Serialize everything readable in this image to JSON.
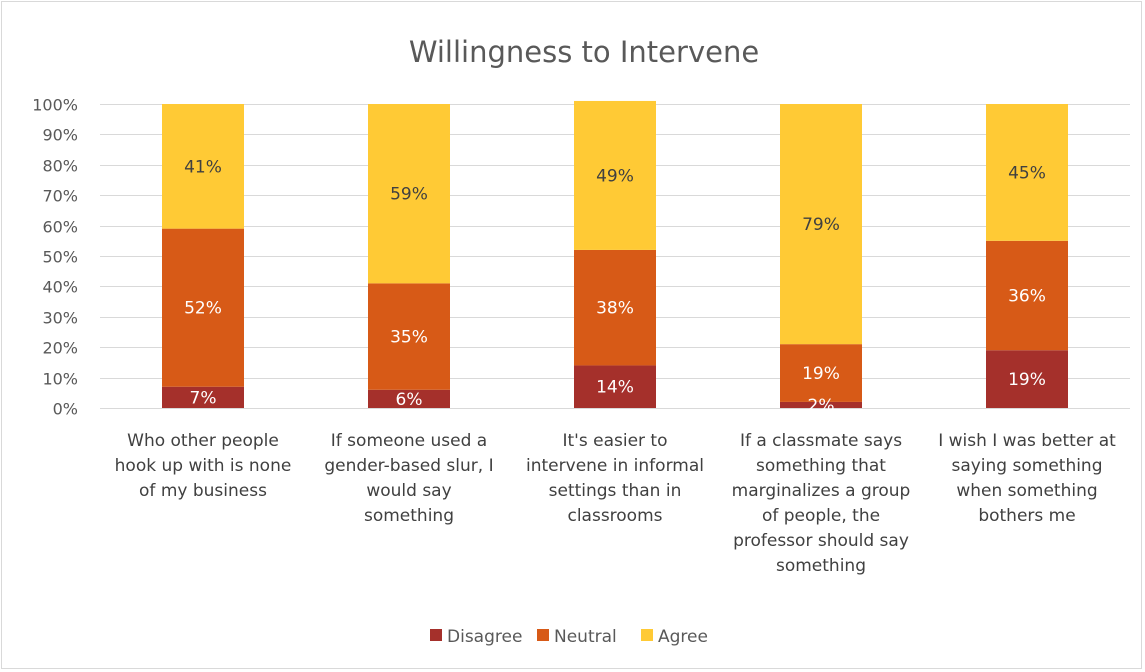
{
  "chart_data": {
    "type": "bar",
    "stacked": "percent",
    "title": "Willingness to Intervene",
    "xlabel": "",
    "ylabel": "",
    "ylim": [
      0,
      100
    ],
    "yticks": [
      "0%",
      "10%",
      "20%",
      "30%",
      "40%",
      "50%",
      "60%",
      "70%",
      "80%",
      "90%",
      "100%"
    ],
    "grid": true,
    "legend": "bottom",
    "categories": [
      [
        "Who other people",
        "hook up with is none",
        "of my business"
      ],
      [
        "If someone used a",
        "gender-based slur, I",
        "would say",
        "something"
      ],
      [
        "It's easier to",
        "intervene in informal",
        "settings than in",
        "classrooms"
      ],
      [
        "If a classmate says",
        "something that",
        "marginalizes a group",
        "of people, the",
        "professor should say",
        "something"
      ],
      [
        "I wish I was better at",
        "saying something",
        "when something",
        "bothers me"
      ]
    ],
    "series": [
      {
        "name": "Disagree",
        "color": "#A5302B",
        "label_color": "#ffffff",
        "values": [
          7,
          6,
          14,
          2,
          19
        ],
        "labels": [
          "7%",
          "6%",
          "14%",
          "2%",
          "19%"
        ]
      },
      {
        "name": "Neutral",
        "color": "#D75A17",
        "label_color": "#ffffff",
        "values": [
          52,
          35,
          38,
          19,
          36
        ],
        "labels": [
          "52%",
          "35%",
          "38%",
          "19%",
          "36%"
        ]
      },
      {
        "name": "Agree",
        "color": "#FFCA35",
        "label_color": "#404040",
        "values": [
          41,
          59,
          49,
          79,
          45
        ],
        "labels": [
          "41%",
          "59%",
          "49%",
          "79%",
          "45%"
        ]
      }
    ]
  }
}
